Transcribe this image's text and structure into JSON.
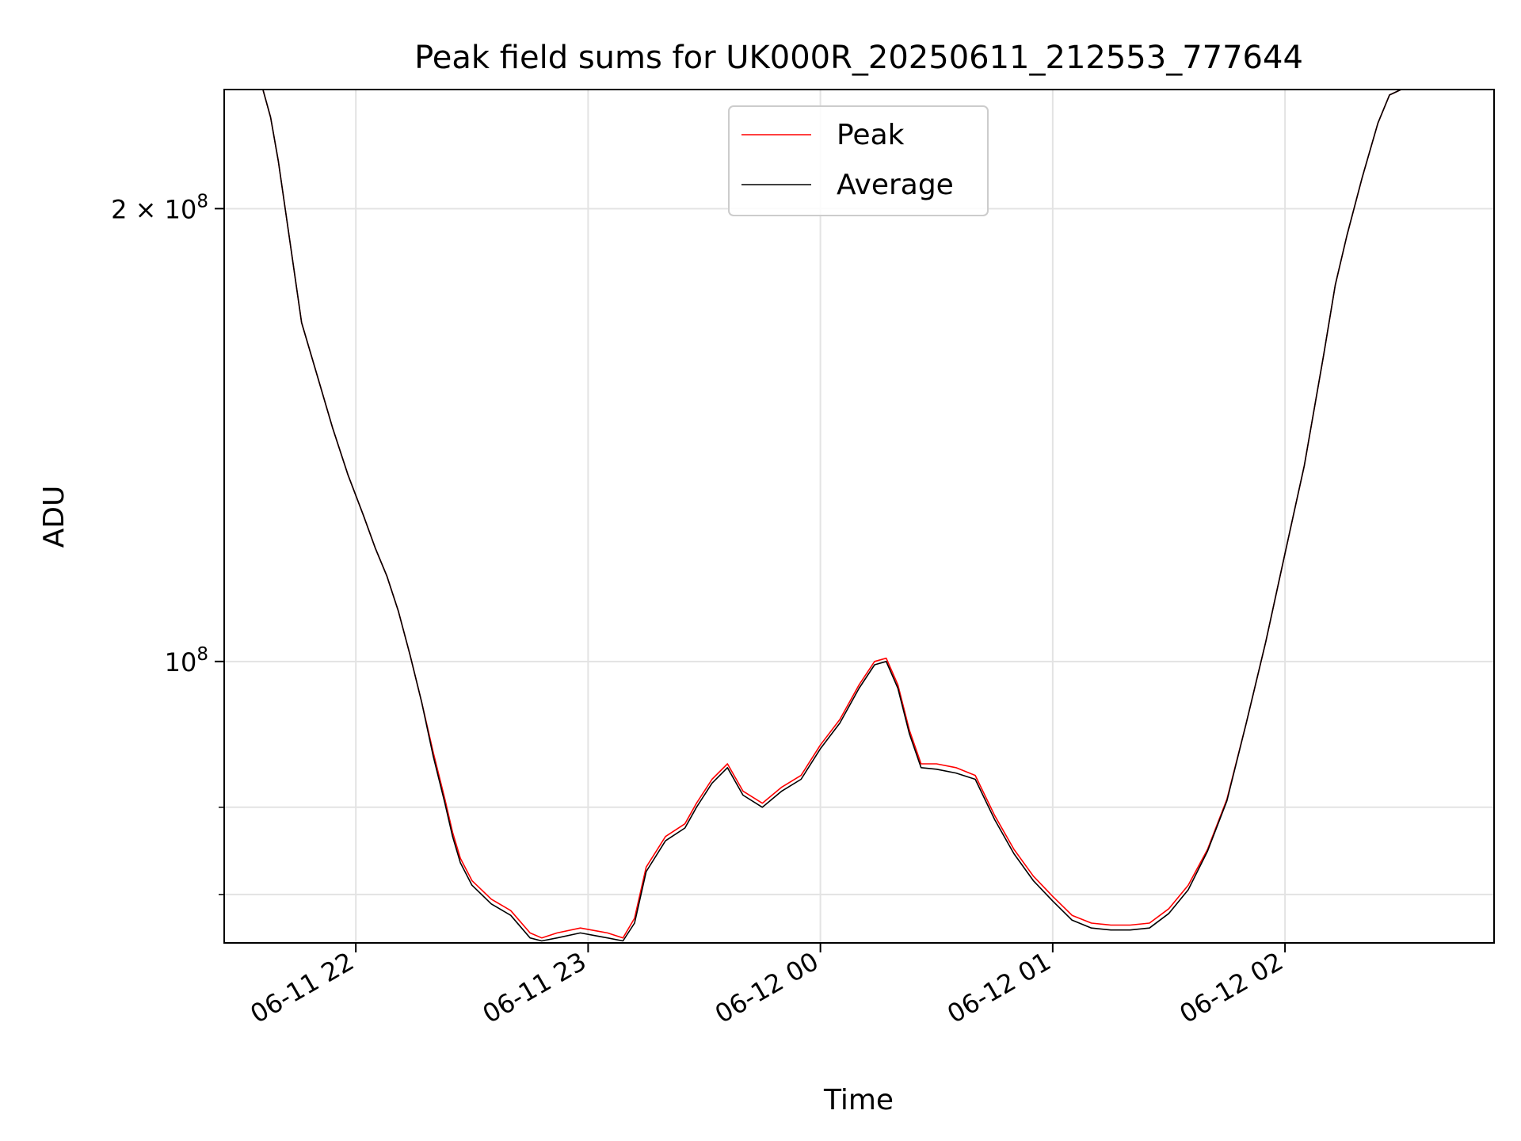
{
  "chart_data": {
    "type": "line",
    "title": "Peak field sums for UK000R_20250611_212553_777644",
    "xlabel": "Time",
    "ylabel": "ADU",
    "y_scale": "log",
    "grid": true,
    "legend_position": "top-center",
    "x_range": [
      "2025-06-11 21:26",
      "2025-06-12 02:54"
    ],
    "ylim": [
      65000000,
      240000000
    ],
    "x_ticks": [
      "06-11 22",
      "06-11 23",
      "06-12 00",
      "06-12 01",
      "06-12 02"
    ],
    "x_tick_values": [
      "2025-06-11 22:00",
      "2025-06-11 23:00",
      "2025-06-12 00:00",
      "2025-06-12 01:00",
      "2025-06-12 02:00"
    ],
    "y_ticks": [
      {
        "value": 200000000,
        "mantissa": "2",
        "times": "×",
        "base": "10",
        "exp": "8"
      },
      {
        "value": 100000000,
        "mantissa": "",
        "times": "",
        "base": "10",
        "exp": "8"
      }
    ],
    "y_minor_ticks": [
      80000000,
      70000000
    ],
    "x": [
      "2025-06-11 21:26",
      "2025-06-11 21:30",
      "2025-06-11 21:33",
      "2025-06-11 21:36",
      "2025-06-11 21:38",
      "2025-06-11 21:40",
      "2025-06-11 21:43",
      "2025-06-11 21:46",
      "2025-06-11 21:50",
      "2025-06-11 21:54",
      "2025-06-11 21:58",
      "2025-06-11 22:02",
      "2025-06-11 22:05",
      "2025-06-11 22:08",
      "2025-06-11 22:11",
      "2025-06-11 22:14",
      "2025-06-11 22:17",
      "2025-06-11 22:20",
      "2025-06-11 22:23",
      "2025-06-11 22:25",
      "2025-06-11 22:27",
      "2025-06-11 22:30",
      "2025-06-11 22:35",
      "2025-06-11 22:40",
      "2025-06-11 22:45",
      "2025-06-11 22:48",
      "2025-06-11 22:52",
      "2025-06-11 22:58",
      "2025-06-11 23:05",
      "2025-06-11 23:09",
      "2025-06-11 23:12",
      "2025-06-11 23:15",
      "2025-06-11 23:20",
      "2025-06-11 23:25",
      "2025-06-11 23:28",
      "2025-06-11 23:32",
      "2025-06-11 23:36",
      "2025-06-11 23:40",
      "2025-06-11 23:45",
      "2025-06-11 23:50",
      "2025-06-11 23:55",
      "2025-06-12 00:00",
      "2025-06-12 00:05",
      "2025-06-12 00:10",
      "2025-06-12 00:14",
      "2025-06-12 00:17",
      "2025-06-12 00:20",
      "2025-06-12 00:23",
      "2025-06-12 00:26",
      "2025-06-12 00:30",
      "2025-06-12 00:35",
      "2025-06-12 00:40",
      "2025-06-12 00:45",
      "2025-06-12 00:50",
      "2025-06-12 00:55",
      "2025-06-12 01:00",
      "2025-06-12 01:05",
      "2025-06-12 01:10",
      "2025-06-12 01:15",
      "2025-06-12 01:20",
      "2025-06-12 01:25",
      "2025-06-12 01:30",
      "2025-06-12 01:35",
      "2025-06-12 01:40",
      "2025-06-12 01:45",
      "2025-06-12 01:50",
      "2025-06-12 01:55",
      "2025-06-12 02:00",
      "2025-06-12 02:05",
      "2025-06-12 02:10",
      "2025-06-12 02:13",
      "2025-06-12 02:16",
      "2025-06-12 02:20",
      "2025-06-12 02:24",
      "2025-06-12 02:27",
      "2025-06-12 02:30",
      "2025-06-12 02:33",
      "2025-06-12 02:36",
      "2025-06-12 02:40",
      "2025-06-12 02:45",
      "2025-06-12 02:54"
    ],
    "series": [
      {
        "name": "Peak",
        "color": "#ff0000",
        "values": [
          240000000,
          240000000,
          240000000,
          240000000,
          230000000,
          215000000,
          190000000,
          168000000,
          155000000,
          143000000,
          133000000,
          125000000,
          119000000,
          114000000,
          108000000,
          101000000,
          94000000,
          87000000,
          81000000,
          77000000,
          74000000,
          71500000,
          69500000,
          68300000,
          66000000,
          65500000,
          66000000,
          66500000,
          66000000,
          65500000,
          67500000,
          73000000,
          76500000,
          78000000,
          80500000,
          83500000,
          85500000,
          82000000,
          80500000,
          82500000,
          84000000,
          88000000,
          91500000,
          96500000,
          100000000,
          100500000,
          96500000,
          90000000,
          85500000,
          85500000,
          85000000,
          84000000,
          79000000,
          75000000,
          72000000,
          69800000,
          67800000,
          67000000,
          66800000,
          66800000,
          67000000,
          68500000,
          71000000,
          75000000,
          81000000,
          91000000,
          103000000,
          118000000,
          135000000,
          160000000,
          178000000,
          192000000,
          210000000,
          228000000,
          238000000,
          240000000,
          240000000,
          240000000,
          240000000,
          240000000,
          240000000
        ]
      },
      {
        "name": "Average",
        "color": "#000000",
        "values": [
          240000000,
          240000000,
          240000000,
          240000000,
          230000000,
          215000000,
          190000000,
          168000000,
          155000000,
          143000000,
          133000000,
          125000000,
          119000000,
          114000000,
          108000000,
          101000000,
          94000000,
          86500000,
          80500000,
          76500000,
          73500000,
          71000000,
          69000000,
          67800000,
          65500000,
          65200000,
          65500000,
          66000000,
          65500000,
          65200000,
          67000000,
          72500000,
          76000000,
          77500000,
          80000000,
          83000000,
          85000000,
          81500000,
          80000000,
          82000000,
          83500000,
          87500000,
          91000000,
          96000000,
          99500000,
          100000000,
          96000000,
          89500000,
          85000000,
          84800000,
          84300000,
          83500000,
          78500000,
          74500000,
          71500000,
          69300000,
          67300000,
          66500000,
          66300000,
          66300000,
          66500000,
          68000000,
          70500000,
          74800000,
          80800000,
          91000000,
          103000000,
          118000000,
          135000000,
          160000000,
          178000000,
          192000000,
          210000000,
          228000000,
          238000000,
          240000000,
          240000000,
          240000000,
          240000000,
          240000000,
          240000000
        ]
      }
    ]
  }
}
